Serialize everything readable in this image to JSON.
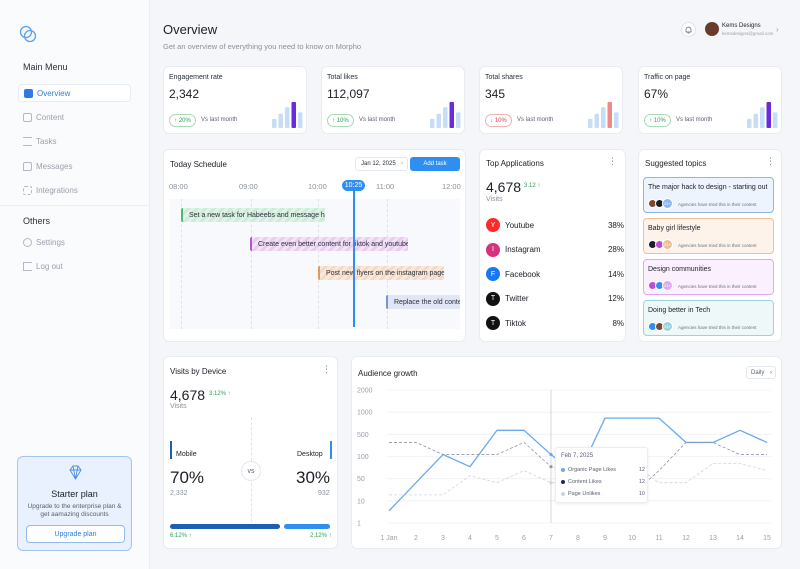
{
  "sidebar": {
    "main_menu": "Main Menu",
    "items": [
      "Overview",
      "Content",
      "Tasks",
      "Messages",
      "Integrations"
    ],
    "others": "Others",
    "others_items": [
      "Settings",
      "Log out"
    ],
    "plan": {
      "title": "Starter plan",
      "desc": "Upgrade to the enterprise plan & get aamazing discounts",
      "button": "Upgrade plan"
    }
  },
  "header": {
    "title": "Overview",
    "subtitle": "Get an overview of everything you need to know on Morpho",
    "user_name": "Kems Designs",
    "user_email": "kemsdesigns@gmail.com"
  },
  "stats": [
    {
      "label": "Engagement rate",
      "value": "2,342",
      "change": "20%",
      "dir": "up",
      "vs": "Vs last month",
      "bars": [
        0.35,
        0.55,
        0.8,
        1.0,
        0.6
      ],
      "hl": 3,
      "hlc": "#6a2bdc"
    },
    {
      "label": "Total likes",
      "value": "112,097",
      "change": "10%",
      "dir": "up",
      "vs": "Vs last month",
      "bars": [
        0.35,
        0.55,
        0.8,
        1.0,
        0.6
      ],
      "hl": 3,
      "hlc": "#6a2bdc"
    },
    {
      "label": "Total shares",
      "value": "345",
      "change": "10%",
      "dir": "down",
      "vs": "Vs last month",
      "bars": [
        0.35,
        0.55,
        0.8,
        1.0,
        0.6
      ],
      "hl": 3,
      "hlc": "#f08a8a"
    },
    {
      "label": "Traffic on page",
      "value": "67%",
      "change": "10%",
      "dir": "up",
      "vs": "Vs last month",
      "bars": [
        0.35,
        0.55,
        0.8,
        1.0,
        0.6
      ],
      "hl": 3,
      "hlc": "#6a2bdc"
    }
  ],
  "schedule": {
    "title": "Today Schedule",
    "date": "Jan 12, 2025",
    "add": "Add task",
    "times": [
      "08:00",
      "09:00",
      "10:00",
      "10:25",
      "11:00",
      "12:00"
    ],
    "tasks": [
      "Set a new task for Habeebs and message her",
      "Create even better content for tiktok and youtube",
      "Post new flyers on the instagram page",
      "Replace the old content"
    ]
  },
  "apps": {
    "title": "Top Applications",
    "value": "4,678",
    "growth": "3.12",
    "unit": "Visits",
    "list": [
      {
        "name": "Youtube",
        "pct": "38%",
        "color": "#ff2a2a"
      },
      {
        "name": "Instagram",
        "pct": "28%",
        "color": "#d7327e"
      },
      {
        "name": "Facebook",
        "pct": "14%",
        "color": "#1877f2"
      },
      {
        "name": "Twitter",
        "pct": "12%",
        "color": "#111111"
      },
      {
        "name": "Tiktok",
        "pct": "8%",
        "color": "#111111"
      }
    ]
  },
  "topics": {
    "title": "Suggested topics",
    "note": "Agencies have tried this in their content",
    "count": "21+",
    "list": [
      {
        "title": "The major hack to design - starting out",
        "bg": "#eef4fd",
        "border": "#8db7ec"
      },
      {
        "title": "Baby girl lifestyle",
        "bg": "#fdf3ea",
        "border": "#f0c196"
      },
      {
        "title": "Design communities",
        "bg": "#fbf0fd",
        "border": "#e3a8ef"
      },
      {
        "title": "Doing better in Tech",
        "bg": "#eef8f8",
        "border": "#9fd3d8"
      }
    ]
  },
  "device": {
    "title": "Visits by Device",
    "value": "4,678",
    "growth": "3.12%",
    "unit": "Visits",
    "mobile_label": "Mobile",
    "mobile_pct": "70%",
    "mobile_val": "2,332",
    "desktop_label": "Desktop",
    "desktop_pct": "30%",
    "desktop_val": "932",
    "vs": "vs",
    "mobile_growth": "6.12%",
    "desktop_growth": "2.12%"
  },
  "audience": {
    "title": "Audience growth",
    "filter": "Daily",
    "tooltip_date": "Feb 7, 2025",
    "tooltip": [
      {
        "label": "Organic Page Likes",
        "value": "12"
      },
      {
        "label": "Content Likes",
        "value": "12"
      },
      {
        "label": "Page Unlikes",
        "value": "10"
      }
    ]
  },
  "chart_data": {
    "type": "line",
    "xlabel": "",
    "ylabel": "",
    "x": [
      "1 Jan",
      "2",
      "3",
      "4",
      "5",
      "6",
      "7",
      "8",
      "9",
      "10",
      "11",
      "12",
      "13",
      "14",
      "15"
    ],
    "y_ticks": [
      "1",
      "10",
      "50",
      "100",
      "500",
      "1000",
      "2000"
    ],
    "series": [
      {
        "name": "Organic Page Likes",
        "values": [
          2,
          10,
          50,
          25,
          200,
          200,
          50,
          15,
          400,
          400,
          400,
          100,
          100,
          200,
          100
        ]
      },
      {
        "name": "Content Likes",
        "values": [
          100,
          100,
          50,
          50,
          50,
          100,
          25,
          20,
          5,
          5,
          20,
          100,
          100,
          50,
          50
        ]
      },
      {
        "name": "Page Unlikes",
        "values": [
          5,
          5,
          5,
          15,
          10,
          20,
          10,
          10,
          10,
          30,
          10,
          10,
          30,
          30,
          20
        ]
      }
    ]
  }
}
